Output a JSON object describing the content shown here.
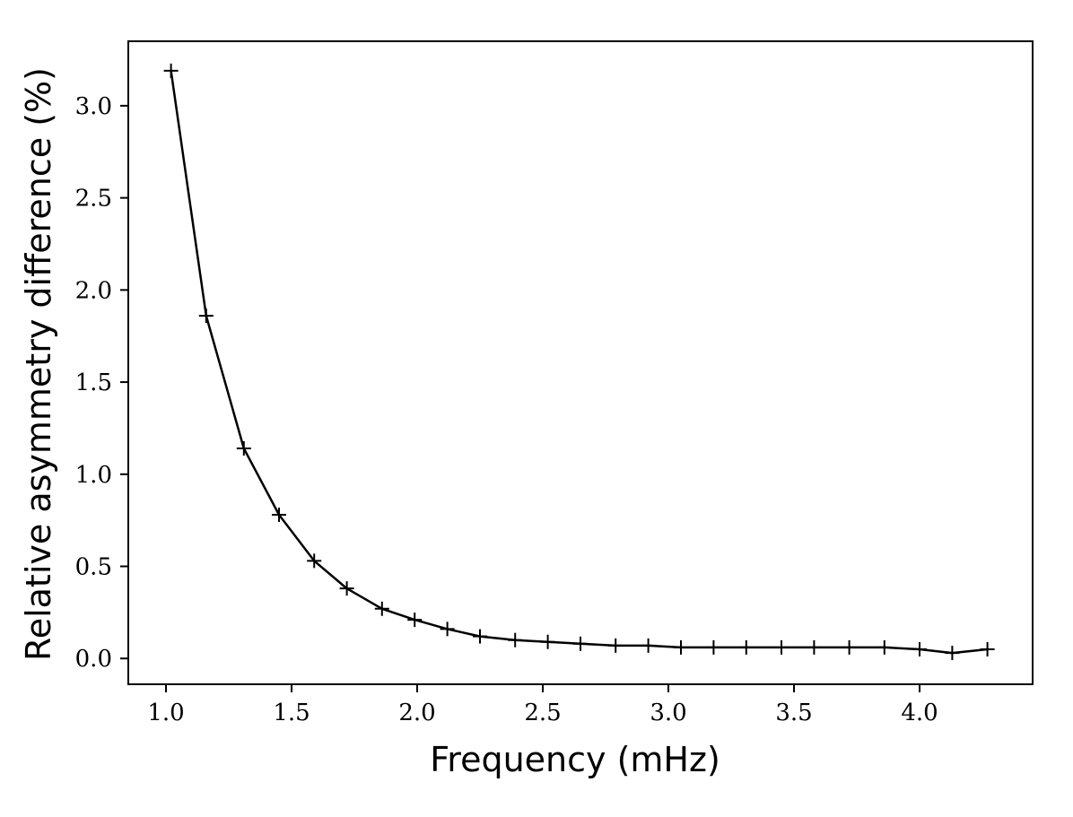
{
  "chart_data": {
    "type": "line",
    "title": "",
    "xlabel": "Frequency (mHz)",
    "ylabel": "Relative asymmetry difference (%)",
    "xlim": [
      0.85,
      4.45
    ],
    "ylim": [
      -0.14,
      3.35
    ],
    "xticks": [
      1.0,
      1.5,
      2.0,
      2.5,
      3.0,
      3.5,
      4.0
    ],
    "xtick_labels": [
      "1.0",
      "1.5",
      "2.0",
      "2.5",
      "3.0",
      "3.5",
      "4.0"
    ],
    "yticks": [
      0.0,
      0.5,
      1.0,
      1.5,
      2.0,
      2.5,
      3.0
    ],
    "ytick_labels": [
      "0.0",
      "0.5",
      "1.0",
      "1.5",
      "2.0",
      "2.5",
      "3.0"
    ],
    "grid": false,
    "legend": "none",
    "series": [
      {
        "color": "#000000",
        "marker": "plus",
        "x": [
          1.02,
          1.16,
          1.31,
          1.45,
          1.59,
          1.72,
          1.86,
          1.99,
          2.12,
          2.25,
          2.39,
          2.52,
          2.65,
          2.79,
          2.92,
          3.05,
          3.18,
          3.31,
          3.45,
          3.58,
          3.72,
          3.86,
          4.0,
          4.13,
          4.27
        ],
        "y": [
          3.19,
          1.86,
          1.14,
          0.78,
          0.53,
          0.38,
          0.27,
          0.21,
          0.16,
          0.12,
          0.1,
          0.09,
          0.08,
          0.07,
          0.07,
          0.06,
          0.06,
          0.06,
          0.06,
          0.06,
          0.06,
          0.06,
          0.05,
          0.03,
          0.05
        ]
      }
    ]
  }
}
